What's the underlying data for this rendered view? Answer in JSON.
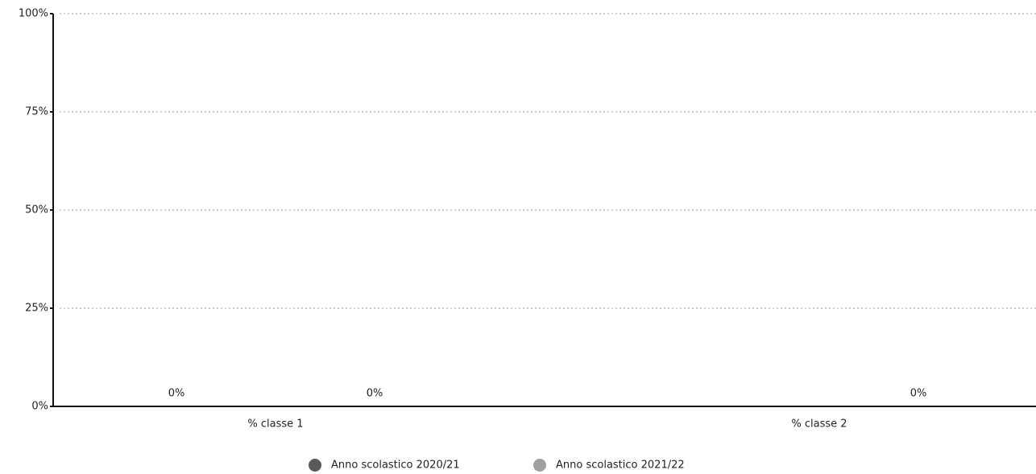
{
  "chart_data": {
    "type": "bar",
    "categories": [
      "% classe 1",
      "% classe 2"
    ],
    "series": [
      {
        "name": "Anno scolastico 2020/21",
        "color": "#5a5a5a",
        "values": [
          0,
          null
        ],
        "value_labels": [
          "0%",
          null
        ]
      },
      {
        "name": "Anno scolastico 2021/22",
        "color": "#a0a0a0",
        "values": [
          0,
          0
        ],
        "value_labels": [
          "0%",
          "0%"
        ]
      }
    ],
    "ylim": [
      0,
      100
    ],
    "yticks": [
      {
        "value": 0,
        "label": "0%"
      },
      {
        "value": 25,
        "label": "25%"
      },
      {
        "value": 50,
        "label": "50%"
      },
      {
        "value": 75,
        "label": "75%"
      },
      {
        "value": 100,
        "label": "100%"
      }
    ],
    "grid": true,
    "legend": "bottom"
  }
}
